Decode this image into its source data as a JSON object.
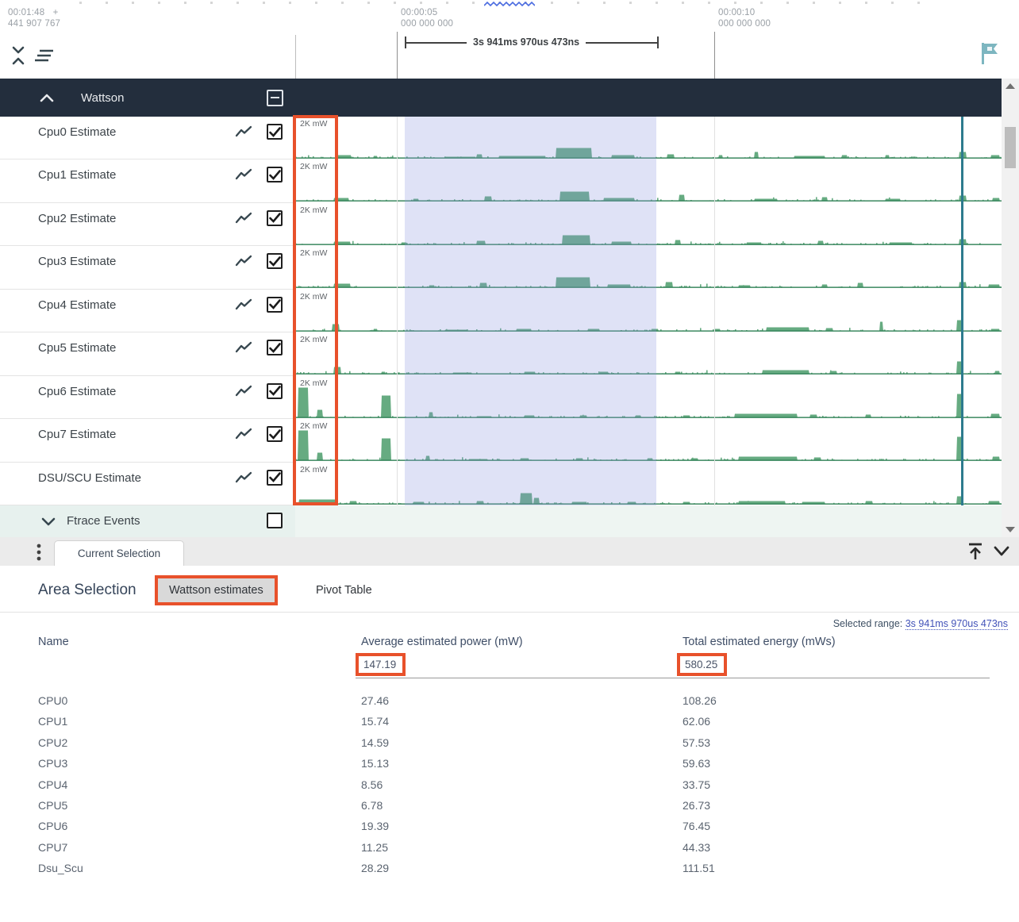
{
  "colors": {
    "annotation": "#e8512b",
    "selection_fill": "rgba(140,150,222,0.28)",
    "marker_teal": "#2d7b8e",
    "spark_fill": "#66ab81",
    "spark_base": "#2e8055",
    "flag_teal": "#7db6c0",
    "link_blue": "#4252b8",
    "groupbar_bg": "#232e3d",
    "squiggle_blue": "#4a6be0"
  },
  "ruler": {
    "left_time": "00:01:48",
    "left_plus": "+",
    "left_sub": "441 907 767",
    "mid_time": "00:00:05",
    "mid_sub": "000 000 000",
    "right_time": "00:00:10",
    "right_sub": "000 000 000",
    "span_label": "3s 941ms 970us 473ns"
  },
  "icons": {
    "collapse": "unfold-less-icon",
    "clear_all": "clear-all-icon",
    "flag": "flag-icon",
    "more_vert": "kebab-icon",
    "align_top": "vertical-align-top-icon",
    "expand_more": "chevron-down-icon"
  },
  "group": {
    "label": "Wattson",
    "checkbox": "indeterminate"
  },
  "tracks": [
    {
      "label": "Cpu0 Estimate",
      "scale": "2K mW",
      "checked": true,
      "features": [
        [
          53,
          18,
          4
        ],
        [
          98,
          6,
          3
        ],
        [
          188,
          40,
          2
        ],
        [
          228,
          8,
          5
        ],
        [
          256,
          60,
          3
        ],
        [
          328,
          46,
          13
        ],
        [
          398,
          30,
          4
        ],
        [
          468,
          10,
          5
        ],
        [
          533,
          6,
          4
        ],
        [
          578,
          6,
          8
        ],
        [
          628,
          40,
          3
        ],
        [
          688,
          8,
          4
        ],
        [
          743,
          6,
          4
        ],
        [
          836,
          10,
          8
        ],
        [
          876,
          12,
          4
        ]
      ]
    },
    {
      "label": "Cpu1 Estimate",
      "scale": "2K mW",
      "checked": true,
      "features": [
        [
          48,
          20,
          4
        ],
        [
          148,
          8,
          3
        ],
        [
          238,
          10,
          6
        ],
        [
          333,
          38,
          12
        ],
        [
          388,
          40,
          4
        ],
        [
          483,
          8,
          8
        ],
        [
          578,
          30,
          3
        ],
        [
          663,
          8,
          5
        ],
        [
          743,
          20,
          3
        ],
        [
          836,
          10,
          7
        ],
        [
          878,
          10,
          4
        ]
      ]
    },
    {
      "label": "Cpu2 Estimate",
      "scale": "2K mW",
      "checked": true,
      "features": [
        [
          48,
          22,
          4
        ],
        [
          133,
          8,
          3
        ],
        [
          228,
          12,
          5
        ],
        [
          336,
          36,
          12
        ],
        [
          398,
          26,
          4
        ],
        [
          478,
          8,
          6
        ],
        [
          568,
          20,
          3
        ],
        [
          658,
          8,
          5
        ],
        [
          748,
          30,
          3
        ],
        [
          836,
          10,
          7
        ]
      ]
    },
    {
      "label": "Cpu3 Estimate",
      "scale": "2K mW",
      "checked": true,
      "features": [
        [
          48,
          22,
          5
        ],
        [
          168,
          8,
          3
        ],
        [
          232,
          10,
          6
        ],
        [
          328,
          44,
          13
        ],
        [
          393,
          30,
          4
        ],
        [
          466,
          10,
          7
        ],
        [
          558,
          16,
          3
        ],
        [
          663,
          8,
          4
        ],
        [
          708,
          8,
          6
        ],
        [
          836,
          10,
          7
        ],
        [
          873,
          15,
          4
        ]
      ]
    },
    {
      "label": "Cpu4 Estimate",
      "scale": "2K mW",
      "checked": true,
      "features": [
        [
          46,
          10,
          9
        ],
        [
          98,
          6,
          3
        ],
        [
          188,
          30,
          2
        ],
        [
          278,
          20,
          3
        ],
        [
          368,
          16,
          3
        ],
        [
          448,
          10,
          3
        ],
        [
          528,
          8,
          3
        ],
        [
          593,
          55,
          5
        ],
        [
          668,
          10,
          4
        ],
        [
          736,
          5,
          12
        ],
        [
          833,
          8,
          14
        ],
        [
          876,
          12,
          3
        ]
      ]
    },
    {
      "label": "Cpu5 Estimate",
      "scale": "2K mW",
      "checked": true,
      "features": [
        [
          48,
          10,
          9
        ],
        [
          108,
          6,
          3
        ],
        [
          198,
          25,
          2
        ],
        [
          288,
          15,
          3
        ],
        [
          383,
          12,
          3
        ],
        [
          478,
          8,
          3
        ],
        [
          588,
          60,
          5
        ],
        [
          673,
          10,
          4
        ],
        [
          833,
          8,
          16
        ],
        [
          881,
          7,
          4
        ]
      ]
    },
    {
      "label": "Cpu6 Estimate",
      "scale": "2K mW",
      "checked": true,
      "features": [
        [
          3,
          14,
          38
        ],
        [
          27,
          8,
          10
        ],
        [
          108,
          13,
          28
        ],
        [
          168,
          6,
          7
        ],
        [
          228,
          20,
          2
        ],
        [
          288,
          14,
          3
        ],
        [
          358,
          10,
          3
        ],
        [
          428,
          8,
          3
        ],
        [
          488,
          10,
          3
        ],
        [
          553,
          80,
          5
        ],
        [
          648,
          10,
          4
        ],
        [
          718,
          8,
          4
        ],
        [
          833,
          9,
          30
        ],
        [
          876,
          12,
          5
        ]
      ]
    },
    {
      "label": "Cpu7 Estimate",
      "scale": "2K mW",
      "checked": true,
      "features": [
        [
          3,
          14,
          38
        ],
        [
          27,
          8,
          10
        ],
        [
          108,
          13,
          28
        ],
        [
          164,
          6,
          6
        ],
        [
          218,
          25,
          2
        ],
        [
          283,
          12,
          3
        ],
        [
          353,
          10,
          3
        ],
        [
          443,
          8,
          3
        ],
        [
          498,
          10,
          3
        ],
        [
          558,
          75,
          5
        ],
        [
          653,
          10,
          4
        ],
        [
          833,
          9,
          30
        ],
        [
          878,
          10,
          5
        ]
      ]
    },
    {
      "label": "DSU/SCU Estimate",
      "scale": "2K mW",
      "checked": true,
      "features": [
        [
          4,
          50,
          6
        ],
        [
          68,
          10,
          4
        ],
        [
          148,
          15,
          3
        ],
        [
          228,
          10,
          4
        ],
        [
          283,
          16,
          14
        ],
        [
          300,
          8,
          8
        ],
        [
          348,
          20,
          3
        ],
        [
          418,
          12,
          3
        ],
        [
          488,
          10,
          3
        ],
        [
          558,
          60,
          4
        ],
        [
          638,
          30,
          3
        ],
        [
          718,
          10,
          4
        ],
        [
          833,
          9,
          10
        ],
        [
          873,
          15,
          4
        ]
      ]
    }
  ],
  "ftrace": {
    "label": "Ftrace Events",
    "checked": false
  },
  "tabstrip": {
    "current_tab": "Current Selection"
  },
  "details": {
    "heading": "Area Selection",
    "tabs": [
      {
        "label": "Wattson estimates",
        "active": true,
        "annotated": true
      },
      {
        "label": "Pivot Table",
        "active": false,
        "annotated": false
      }
    ],
    "selected_range_label": "Selected range:",
    "selected_range_value": "3s 941ms 970us 473ns",
    "table": {
      "columns": [
        "Name",
        "Average estimated power (mW)",
        "Total estimated energy (mWs)"
      ],
      "totals": {
        "avg_power": "147.19",
        "total_energy": "580.25"
      },
      "rows": [
        [
          "CPU0",
          "27.46",
          "108.26"
        ],
        [
          "CPU1",
          "15.74",
          "62.06"
        ],
        [
          "CPU2",
          "14.59",
          "57.53"
        ],
        [
          "CPU3",
          "15.13",
          "59.63"
        ],
        [
          "CPU4",
          "8.56",
          "33.75"
        ],
        [
          "CPU5",
          "6.78",
          "26.73"
        ],
        [
          "CPU6",
          "19.39",
          "76.45"
        ],
        [
          "CPU7",
          "11.25",
          "44.33"
        ],
        [
          "Dsu_Scu",
          "28.29",
          "111.51"
        ]
      ]
    }
  }
}
